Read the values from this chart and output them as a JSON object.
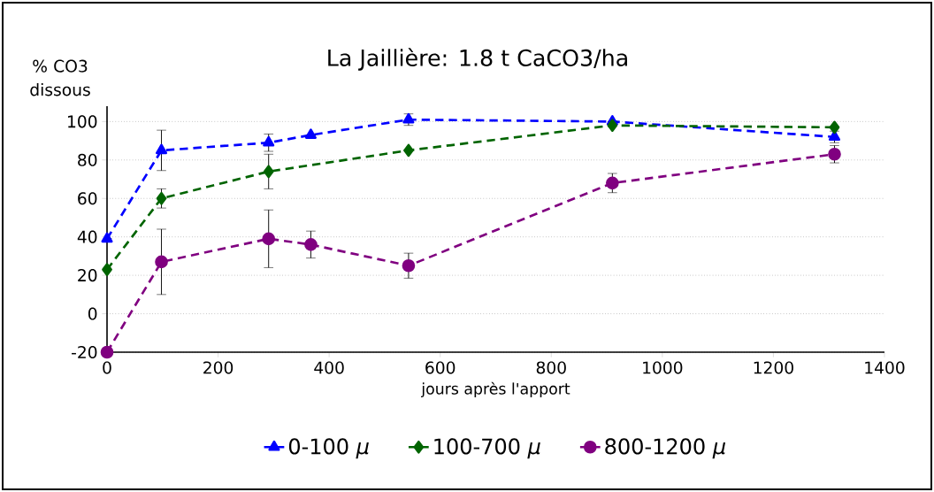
{
  "chart_data": {
    "type": "line",
    "title": "La Jaillière: 1.8 t CaCO3/ha",
    "ylabel": "% CO3 dissous",
    "xlabel": "jours après l'apport",
    "xlim": [
      0,
      1400
    ],
    "xticks": [
      0,
      200,
      400,
      600,
      800,
      1000,
      1200,
      1400
    ],
    "ylim": [
      -20,
      108
    ],
    "yticks": [
      -20,
      0,
      20,
      40,
      60,
      80,
      100
    ],
    "grid": "y",
    "legend": "bottom",
    "line_style": "dashed",
    "series": [
      {
        "name": "0-100 *μ*",
        "color": "#0000ff",
        "marker": "triangle",
        "x": [
          0,
          98,
          291,
          367,
          543,
          910,
          1310
        ],
        "values": [
          39,
          85,
          89,
          93,
          101,
          100,
          92
        ],
        "errors": [
          null,
          10.5,
          4.5,
          null,
          3,
          null,
          3
        ]
      },
      {
        "name": "100-700 *μ*",
        "color": "#006400",
        "marker": "diamond",
        "x": [
          0,
          98,
          291,
          543,
          910,
          1310
        ],
        "values": [
          23,
          60,
          74,
          85,
          98,
          97
        ],
        "errors": [
          null,
          5,
          9,
          null,
          null,
          null
        ]
      },
      {
        "name": "800-1200 *μ*",
        "color": "#800080",
        "marker": "circle",
        "x": [
          0,
          98,
          291,
          367,
          543,
          910,
          1310
        ],
        "values": [
          -20,
          27,
          39,
          36,
          25,
          68,
          83
        ],
        "errors": [
          null,
          17,
          15,
          7,
          6.5,
          5,
          4.5
        ]
      }
    ]
  }
}
